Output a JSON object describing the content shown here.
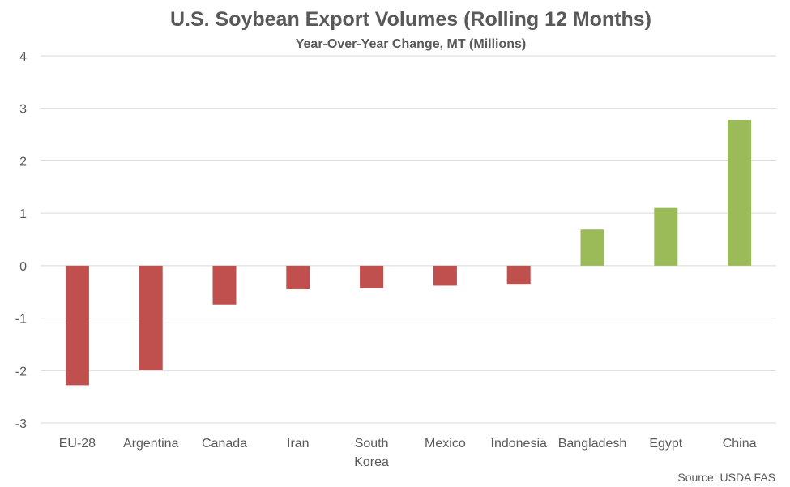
{
  "chart_data": {
    "type": "bar",
    "title": "U.S. Soybean Export Volumes (Rolling 12 Months)",
    "subtitle": "Year-Over-Year Change, MT (Millions)",
    "source": "Source: USDA FAS",
    "categories": [
      "EU-28",
      "Argentina",
      "Canada",
      "Iran",
      "South Korea",
      "Mexico",
      "Indonesia",
      "Bangladesh",
      "Egypt",
      "China"
    ],
    "category_lines": [
      [
        "EU-28"
      ],
      [
        "Argentina"
      ],
      [
        "Canada"
      ],
      [
        "Iran"
      ],
      [
        "South",
        "Korea"
      ],
      [
        "Mexico"
      ],
      [
        "Indonesia"
      ],
      [
        "Bangladesh"
      ],
      [
        "Egypt"
      ],
      [
        "China"
      ]
    ],
    "values": [
      -2.28,
      -1.99,
      -0.74,
      -0.45,
      -0.43,
      -0.38,
      -0.36,
      0.69,
      1.1,
      2.78
    ],
    "ylim": [
      -3,
      4
    ],
    "yticks": [
      "-3",
      "-2",
      "-1",
      "0",
      "1",
      "2",
      "3",
      "4"
    ],
    "xlabel": "",
    "ylabel": "",
    "grid": true,
    "colors": {
      "negative": "#c0504d",
      "positive": "#9bbb59",
      "grid": "#d9d9d9",
      "text": "#595959"
    }
  }
}
